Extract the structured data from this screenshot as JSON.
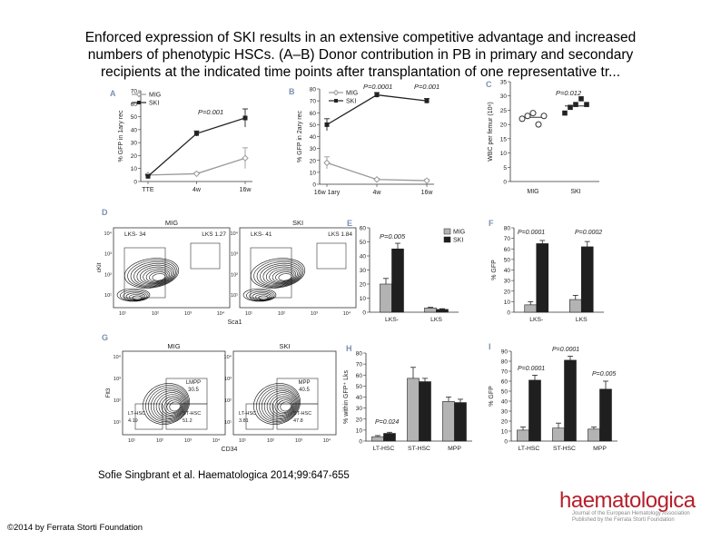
{
  "title_lines": [
    "Enforced expression of SKI results in an extensive competitive advantage and increased",
    "numbers of phenotypic HSCs. (A–B) Donor contribution in PB in primary and secondary",
    "recipients at the indicated time points after transplantation of one representative tr..."
  ],
  "citation": "Sofie Singbrant et al. Haematologica 2014;99:647-655",
  "copyright": "©2014 by Ferrata Storti Foundation",
  "logo": {
    "text": "haematologica",
    "sub_line1": "Journal of the European Hematology Association",
    "sub_line2": "Published by the Ferrata Storti Foundation"
  },
  "colors": {
    "mig": "#999999",
    "ski": "#222222",
    "bar_mig": "#b3b3b3",
    "bar_ski": "#1f1f1f",
    "accent": "#b51f2a"
  },
  "chart_data": [
    {
      "panel": "A",
      "type": "line",
      "categories": [
        "TTE",
        "4w",
        "16w"
      ],
      "series": [
        {
          "name": "MIG",
          "values": [
            5,
            6,
            18
          ],
          "err": [
            1,
            1,
            8
          ]
        },
        {
          "name": "SKI",
          "values": [
            4,
            37,
            49
          ],
          "err": [
            1,
            2,
            7
          ]
        }
      ],
      "ylabel": "% GFP in 1ary rec",
      "ylim": [
        0,
        70
      ],
      "yticks": [
        0,
        10,
        20,
        30,
        40,
        50,
        60,
        70
      ],
      "annotation": "P=0.001"
    },
    {
      "panel": "B",
      "type": "line",
      "categories": [
        "16w 1ary",
        "4w",
        "16w"
      ],
      "series": [
        {
          "name": "MIG",
          "values": [
            18,
            4,
            3
          ],
          "err": [
            5,
            1,
            1
          ]
        },
        {
          "name": "SKI",
          "values": [
            50,
            75,
            70
          ],
          "err": [
            5,
            2,
            2
          ]
        }
      ],
      "ylabel": "% GFP in 2ary rec",
      "ylim": [
        0,
        80
      ],
      "yticks": [
        0,
        10,
        20,
        30,
        40,
        50,
        60,
        70,
        80
      ],
      "annotations": [
        "P=0.0001",
        "P=0.001"
      ]
    },
    {
      "panel": "C",
      "type": "scatter",
      "categories": [
        "MIG",
        "SKI"
      ],
      "series": [
        {
          "name": "MIG",
          "values": [
            22,
            23,
            24,
            20,
            23
          ],
          "mean": 22.5
        },
        {
          "name": "SKI",
          "values": [
            24,
            26,
            27,
            29,
            27
          ],
          "mean": 26.5
        }
      ],
      "ylabel": "WBC per femur (10⁶)",
      "ylim": [
        0,
        35
      ],
      "yticks": [
        0,
        5,
        10,
        15,
        20,
        25,
        30,
        35
      ],
      "annotation": "P=0.012"
    },
    {
      "panel": "D",
      "type": "flow-contour",
      "titles": [
        "MIG",
        "SKI"
      ],
      "gates": [
        [
          "LKS- 34",
          "LKS 1.27"
        ],
        [
          "LKS- 41",
          "LKS 1.84"
        ]
      ],
      "xlabel": "Sca1",
      "ylabel": "cKit",
      "ticks": [
        "10¹",
        "10²",
        "10³",
        "10⁴"
      ]
    },
    {
      "panel": "E",
      "type": "bar",
      "categories": [
        "LKS-",
        "LKS"
      ],
      "series": [
        {
          "name": "MIG",
          "values": [
            20,
            3
          ],
          "err": [
            4,
            0.5
          ]
        },
        {
          "name": "SKI",
          "values": [
            45,
            2
          ],
          "err": [
            4,
            0.5
          ]
        }
      ],
      "ylabel": "% within GFP⁺ Lin⁻",
      "ylim": [
        0,
        60
      ],
      "yticks": [
        0,
        10,
        20,
        30,
        40,
        50,
        60
      ],
      "annotation": "P=0.005"
    },
    {
      "panel": "F",
      "type": "bar",
      "categories": [
        "LKS-",
        "LKS"
      ],
      "series": [
        {
          "name": "MIG",
          "values": [
            7,
            12
          ],
          "err": [
            3,
            4
          ]
        },
        {
          "name": "SKI",
          "values": [
            65,
            62
          ],
          "err": [
            3,
            5
          ]
        }
      ],
      "ylabel": "% GFP",
      "ylim": [
        0,
        80
      ],
      "yticks": [
        0,
        10,
        20,
        30,
        40,
        50,
        60,
        70,
        80
      ],
      "annotations": [
        "P=0.0001",
        "P=0.0002"
      ]
    },
    {
      "panel": "G",
      "type": "flow-contour",
      "titles": [
        "MIG",
        "SKI"
      ],
      "gates": [
        [
          "LMPP 30.5",
          "LT-HSC 4.19",
          "ST-HSC 51.2"
        ],
        [
          "MPP 40.5",
          "LT-HSC 3.81",
          "ST-HSC 47.8"
        ]
      ],
      "xlabel": "CD34",
      "ylabel": "Flt3",
      "ticks": [
        "10¹",
        "10²",
        "10³",
        "10⁴"
      ]
    },
    {
      "panel": "H",
      "type": "bar",
      "categories": [
        "LT-HSC",
        "ST-HSC",
        "MPP"
      ],
      "series": [
        {
          "name": "MIG",
          "values": [
            4,
            57,
            36
          ],
          "err": [
            1,
            10,
            4
          ]
        },
        {
          "name": "SKI",
          "values": [
            7,
            54,
            35
          ],
          "err": [
            1,
            3,
            3
          ]
        }
      ],
      "ylabel": "% within GFP⁺ Lks",
      "ylim": [
        0,
        80
      ],
      "yticks": [
        0,
        10,
        20,
        30,
        40,
        50,
        60,
        70,
        80
      ],
      "annotation": "P=0.024"
    },
    {
      "panel": "I",
      "type": "bar",
      "categories": [
        "LT-HSC",
        "ST-HSC",
        "MPP"
      ],
      "series": [
        {
          "name": "MIG",
          "values": [
            11,
            13,
            12
          ],
          "err": [
            3,
            5,
            2
          ]
        },
        {
          "name": "SKI",
          "values": [
            61,
            81,
            52
          ],
          "err": [
            5,
            4,
            8
          ]
        }
      ],
      "ylabel": "% GFP",
      "ylim": [
        0,
        90
      ],
      "yticks": [
        0,
        10,
        20,
        30,
        40,
        50,
        60,
        70,
        80,
        90
      ],
      "annotations": [
        "P=0.0001",
        "P=0.0001",
        "P=0.005"
      ]
    }
  ]
}
